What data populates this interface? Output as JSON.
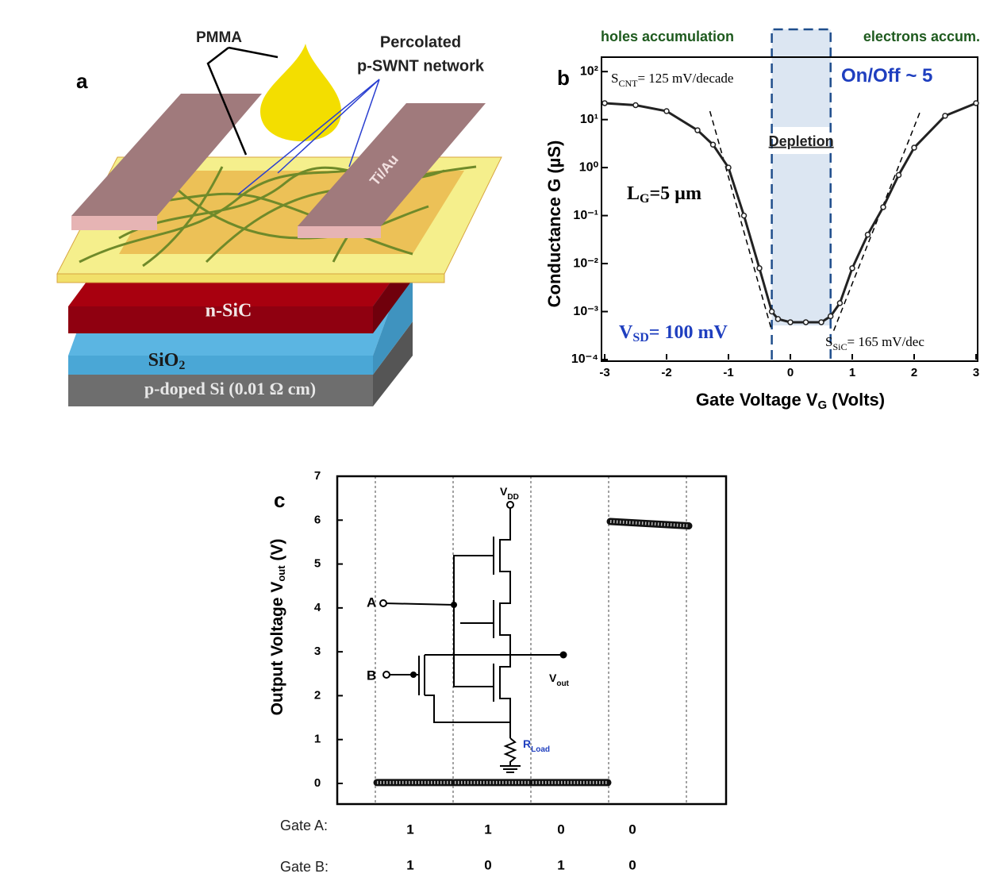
{
  "panel_labels": [
    "a",
    "b",
    "c"
  ],
  "diagram": {
    "pmma": "PMMA",
    "network": [
      "Percolated",
      "p-SWNT network"
    ],
    "electrode": "Ti/Au",
    "sic": "n-SiC",
    "sio2": {
      "main": "SiO",
      "sub": "2"
    },
    "si": "p-doped Si (0.01 Ω cm)"
  },
  "chart_data": [
    {
      "type": "line",
      "ylabel": "Conductance G (µS)",
      "xlabel": {
        "main": "Gate Voltage V",
        "sub": "G",
        "rest": " (Volts)"
      },
      "log_y": true,
      "xlim": [
        -3,
        3
      ],
      "xticks": [
        -3,
        -2,
        -1,
        0,
        1,
        2,
        3
      ],
      "ylim": [
        0.0001,
        200
      ],
      "yticks": [
        {
          "value": 100,
          "label": "10²"
        },
        {
          "value": 10,
          "label": "10¹"
        },
        {
          "value": 1,
          "label": "10⁰"
        },
        {
          "value": 0.1,
          "label": "10⁻¹"
        },
        {
          "value": 0.01,
          "label": "10⁻²"
        },
        {
          "value": 0.001,
          "label": "10⁻³"
        },
        {
          "value": 0.0001,
          "label": "10⁻⁴"
        }
      ],
      "x": [
        -3,
        -2.5,
        -2,
        -1.5,
        -1.25,
        -1,
        -0.75,
        -0.5,
        -0.3,
        -0.2,
        0,
        0.25,
        0.5,
        0.65,
        0.8,
        1,
        1.25,
        1.5,
        1.75,
        2,
        2.5,
        3
      ],
      "values": [
        22,
        20,
        15,
        6,
        3,
        1,
        0.1,
        0.008,
        0.001,
        0.0007,
        0.0006,
        0.0006,
        0.0006,
        0.0008,
        0.0015,
        0.008,
        0.04,
        0.15,
        0.7,
        2.6,
        12,
        22
      ],
      "color": "#222222",
      "fit_lines": [
        {
          "x": [
            -1.3,
            -0.3
          ],
          "values": [
            15,
            0.0004
          ]
        },
        {
          "x": [
            0.7,
            2.1
          ],
          "values": [
            0.0004,
            15
          ]
        }
      ],
      "shaded_region": {
        "label": "Depletion",
        "x": [
          -0.3,
          0.65
        ],
        "color": "#dce6f2"
      },
      "top_labels": [
        "holes accumulation",
        "electrons accum."
      ],
      "annotations": [
        {
          "main": "S",
          "sub": "CNT",
          "rest": "= 125 mV/decade"
        },
        {
          "main": "On/Off ~ 5"
        },
        {
          "main": "L",
          "sub": "G",
          "rest": "=5 µm"
        },
        {
          "main": "V",
          "sub": "SD",
          "rest": "= 100 mV"
        },
        {
          "main": "S",
          "sub": "SiC",
          "rest": "= 165 mV/dec"
        }
      ]
    },
    {
      "type": "segments",
      "ylabel": {
        "main": "Output Voltage V",
        "sub": "out",
        "rest": " (V)"
      },
      "ylim": [
        -0.47,
        7
      ],
      "yticks": [
        0,
        1,
        2,
        3,
        4,
        5,
        6,
        7
      ],
      "values": [
        [
          0.02,
          0.02
        ],
        [
          0.02,
          0.02
        ],
        [
          0.02,
          0.02
        ],
        [
          5.97,
          5.87
        ]
      ],
      "row_labels": [
        "Gate A:",
        "Gate B:"
      ],
      "gate_a": [
        1,
        1,
        0,
        0
      ],
      "gate_b": [
        1,
        0,
        1,
        0
      ],
      "circuit": {
        "vdd": {
          "main": "V",
          "sub": "DD"
        },
        "a": "A",
        "b": "B",
        "vout": {
          "main": "V",
          "sub": "out"
        },
        "rload": {
          "main": "R",
          "sub": "Load"
        }
      }
    }
  ]
}
